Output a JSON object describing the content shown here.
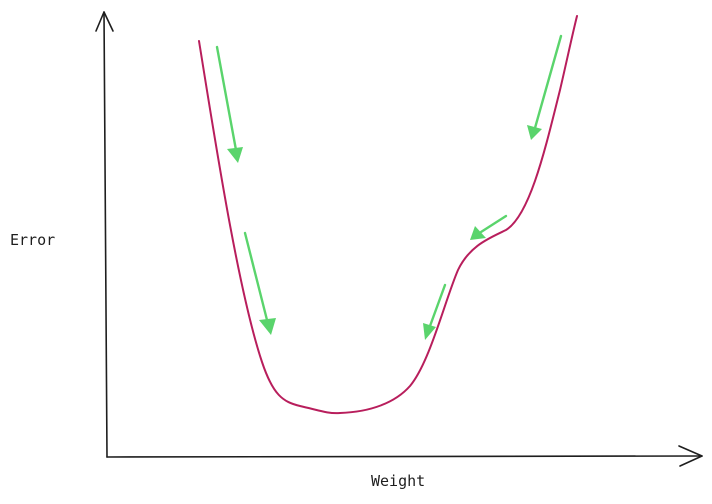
{
  "diagram": {
    "y_axis_label": "Error",
    "x_axis_label": "Weight",
    "colors": {
      "axis": "#1e1e1e",
      "curve": "#b81e5c",
      "arrows": "#5ad46c"
    }
  }
}
